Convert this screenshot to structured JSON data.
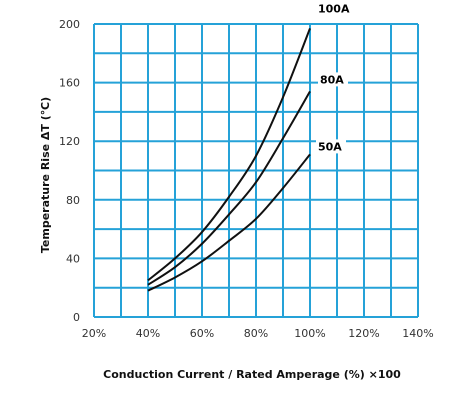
{
  "chart_data": {
    "type": "line",
    "title": "",
    "xlabel": "Conduction Current / Rated Amperage (%) ×100",
    "ylabel": "Temperature Rise ΔT (℃)",
    "xlim": [
      20,
      140
    ],
    "ylim": [
      0,
      200
    ],
    "x_ticks": [
      20,
      40,
      60,
      80,
      100,
      120,
      140
    ],
    "x_tick_labels": [
      "20%",
      "40%",
      "60%",
      "80%",
      "100%",
      "120%",
      "140%"
    ],
    "y_ticks": [
      0,
      40,
      80,
      120,
      160,
      200
    ],
    "y_tick_labels": [
      "0",
      "40",
      "80",
      "120",
      "160",
      "200"
    ],
    "grid": true,
    "grid_minor_x_step": 10,
    "grid_minor_y_step": 20,
    "colors": {
      "grid": "#25A2D8",
      "line": "#111111",
      "background": "#ffffff"
    },
    "series": [
      {
        "name": "100A",
        "x": [
          40,
          50,
          60,
          70,
          80,
          90,
          100
        ],
        "y": [
          25,
          40,
          58,
          82,
          110,
          150,
          197
        ]
      },
      {
        "name": "80A",
        "x": [
          40,
          50,
          60,
          70,
          80,
          90,
          100
        ],
        "y": [
          22,
          34,
          50,
          70,
          92,
          122,
          154
        ]
      },
      {
        "name": "50A",
        "x": [
          40,
          50,
          60,
          70,
          80,
          90,
          100
        ],
        "y": [
          18,
          27,
          38,
          52,
          67,
          88,
          111
        ]
      }
    ]
  }
}
